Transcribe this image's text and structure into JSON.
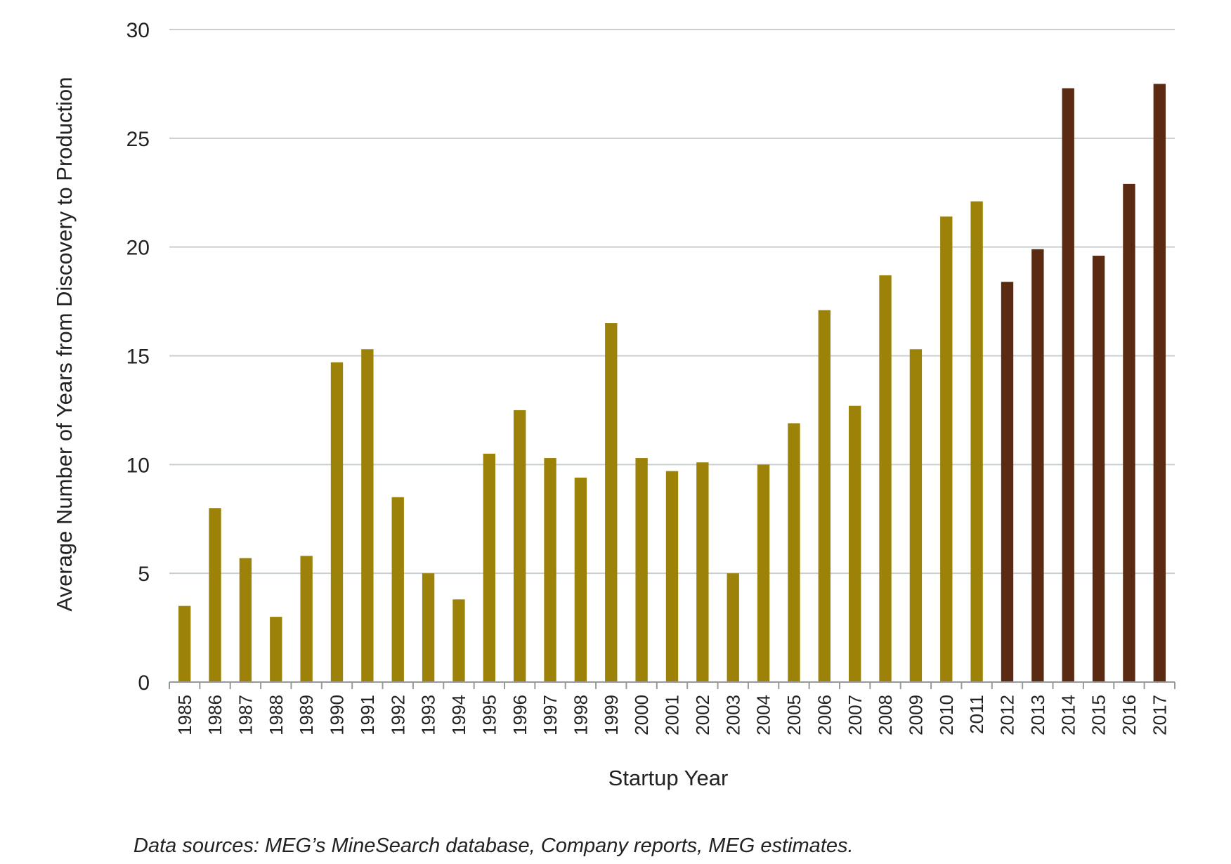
{
  "chart_data": {
    "type": "bar",
    "title": "",
    "xlabel": "Startup Year",
    "ylabel": "Average Number of Years from Discovery to Production",
    "ylim": [
      0,
      30
    ],
    "yticks": [
      0,
      5,
      10,
      15,
      20,
      25,
      30
    ],
    "grid": true,
    "legend": "none",
    "categories": [
      "1985",
      "1986",
      "1987",
      "1988",
      "1989",
      "1990",
      "1991",
      "1992",
      "1993",
      "1994",
      "1995",
      "1996",
      "1997",
      "1998",
      "1999",
      "2000",
      "2001",
      "2002",
      "2003",
      "2004",
      "2005",
      "2006",
      "2007",
      "2008",
      "2009",
      "2010",
      "2011",
      "2012",
      "2013",
      "2014",
      "2015",
      "2016",
      "2017"
    ],
    "values": [
      3.5,
      8.0,
      5.7,
      3.0,
      5.8,
      14.7,
      15.3,
      8.5,
      5.0,
      3.8,
      10.5,
      12.5,
      10.3,
      9.4,
      16.5,
      10.3,
      9.7,
      10.1,
      5.0,
      10.0,
      11.9,
      17.1,
      12.7,
      18.7,
      15.3,
      21.4,
      22.1,
      18.4,
      19.9,
      27.3,
      19.6,
      22.9,
      27.5
    ],
    "colors": {
      "historical": "#9c8208",
      "recent": "#5a2a12",
      "grid": "#c7cfd1",
      "axis": "#999999"
    },
    "recent_start_category": "2012"
  },
  "source_note": "Data sources:  MEG’s MineSearch database, Company reports, MEG estimates."
}
